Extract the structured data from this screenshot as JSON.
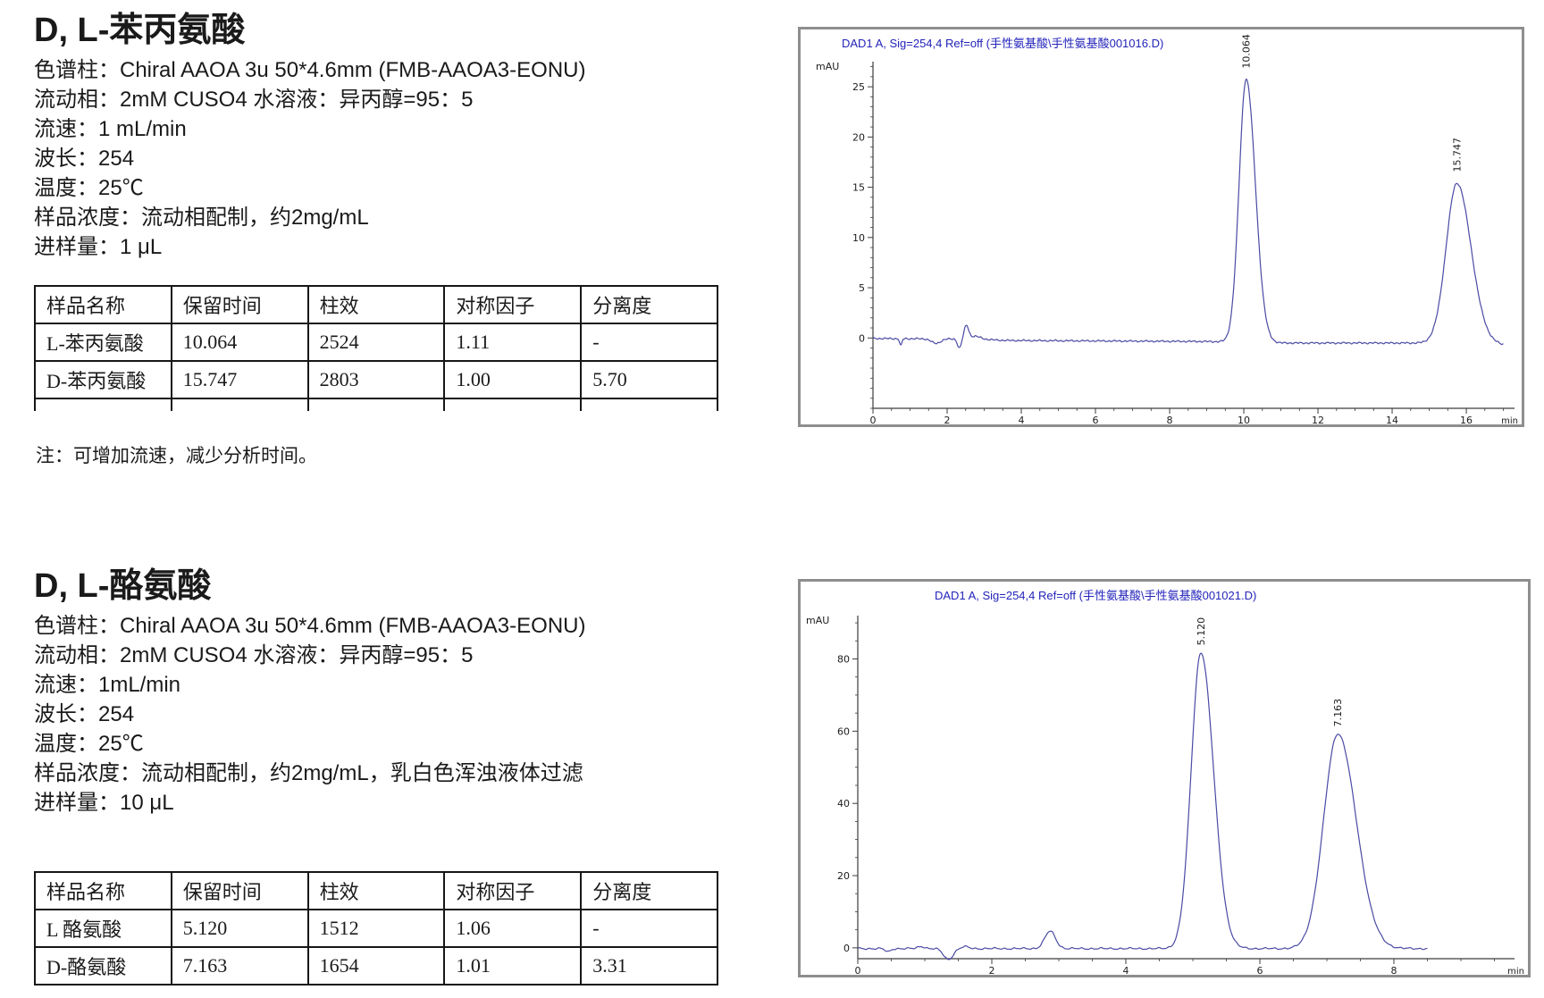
{
  "sections": [
    {
      "title": "D, L-苯丙氨酸",
      "params": [
        "色谱柱：Chiral AAOA 3u 50*4.6mm (FMB-AAOA3-EONU)",
        "流动相：2mM CUSO4 水溶液：异丙醇=95：5",
        "流速：1 mL/min",
        "波长：254",
        "温度：25℃",
        "样品浓度：流动相配制，约2mg/mL",
        "进样量：1 μL"
      ],
      "table": {
        "headers": [
          "样品名称",
          "保留时间",
          "柱效",
          "对称因子",
          "分离度"
        ],
        "rows": [
          [
            "L-苯丙氨酸",
            "10.064",
            "2524",
            "1.11",
            "-"
          ],
          [
            "D-苯丙氨酸",
            "15.747",
            "2803",
            "1.00",
            "5.70"
          ]
        ]
      },
      "note": "注：可增加流速，减少分析时间。"
    },
    {
      "title": "D, L-酪氨酸",
      "params": [
        "色谱柱：Chiral AAOA 3u 50*4.6mm (FMB-AAOA3-EONU)",
        "流动相：2mM CUSO4 水溶液：异丙醇=95：5",
        "流速：1mL/min",
        "波长：254",
        "温度：25℃",
        "样品浓度：流动相配制，约2mg/mL，乳白色浑浊液体过滤",
        "进样量：10 μL"
      ],
      "table": {
        "headers": [
          "样品名称",
          "保留时间",
          "柱效",
          "对称因子",
          "分离度"
        ],
        "rows": [
          [
            "L 酪氨酸",
            "5.120",
            "1512",
            "1.06",
            "-"
          ],
          [
            "D-酪氨酸",
            "7.163",
            "1654",
            "1.01",
            "3.31"
          ]
        ]
      }
    }
  ],
  "chart_data": [
    {
      "type": "line",
      "title": "DAD1 A, Sig=254,4 Ref=off (手性氨基酸\\手性氨基酸001016.D)",
      "ylabel": "mAU",
      "xlabel": "min",
      "xlim": [
        0,
        17.3
      ],
      "ylim": [
        -7,
        27.5
      ],
      "xticks": [
        0,
        2,
        4,
        6,
        8,
        10,
        12,
        14,
        16
      ],
      "yticks": [
        0,
        5,
        10,
        15,
        20,
        25
      ],
      "x_minor_step": 0.5,
      "y_minor_step": 1,
      "trace_end": 17.0,
      "grid": false,
      "legend": false,
      "line_color": "#4a4aa5",
      "title_color": "#2323bb",
      "noise_amp": 0.05,
      "baseline": [
        [
          0,
          -0.05
        ],
        [
          2.2,
          -0.1
        ],
        [
          3.0,
          -0.15
        ],
        [
          3.6,
          -0.25
        ],
        [
          9.0,
          -0.35
        ],
        [
          11.0,
          -0.5
        ],
        [
          16.5,
          -0.5
        ],
        [
          17.0,
          -0.7
        ]
      ],
      "features": [
        {
          "x": 0.75,
          "amp": -0.7,
          "w": 0.03
        },
        {
          "x": 1.7,
          "amp": -0.45,
          "w": 0.12
        },
        {
          "x": 2.33,
          "amp": -0.9,
          "w": 0.05
        },
        {
          "x": 2.52,
          "amp": 1.3,
          "w": 0.06
        },
        {
          "x": 2.75,
          "amp": 0.3,
          "w": 0.15
        }
      ],
      "peaks": [
        {
          "rt": 10.064,
          "height": 26.2,
          "width": 0.19,
          "label": "10.064"
        },
        {
          "rt": 15.747,
          "height": 15.9,
          "width": 0.29,
          "label": "15.747"
        }
      ]
    },
    {
      "type": "line",
      "title": "DAD1 A, Sig=254,4 Ref=off (手性氨基酸\\手性氨基酸001021.D)",
      "ylabel": "mAU",
      "xlabel": "min",
      "xlim": [
        0,
        9.8
      ],
      "ylim": [
        -3,
        92
      ],
      "xticks": [
        0,
        2,
        4,
        6,
        8
      ],
      "yticks": [
        0,
        20,
        40,
        60,
        80
      ],
      "x_minor_step": 0.5,
      "y_minor_step": 5,
      "trace_end": 8.5,
      "grid": false,
      "legend": false,
      "line_color": "#4a4aa5",
      "title_color": "#2323bb",
      "noise_amp": 0.15,
      "baseline": [
        [
          0,
          -0.2
        ],
        [
          8.5,
          -0.2
        ]
      ],
      "features": [
        {
          "x": 0.45,
          "amp": -0.9,
          "w": 0.04
        },
        {
          "x": 0.95,
          "amp": 0.6,
          "w": 0.05
        },
        {
          "x": 1.35,
          "amp": -3.0,
          "w": 0.07
        },
        {
          "x": 1.6,
          "amp": 0.5,
          "w": 0.06
        },
        {
          "x": 2.87,
          "amp": 4.8,
          "w": 0.08
        }
      ],
      "peaks": [
        {
          "rt": 5.12,
          "height": 82.0,
          "width": 0.145,
          "label": "5.120"
        },
        {
          "rt": 7.163,
          "height": 59.5,
          "width": 0.21,
          "label": "7.163"
        }
      ]
    }
  ]
}
